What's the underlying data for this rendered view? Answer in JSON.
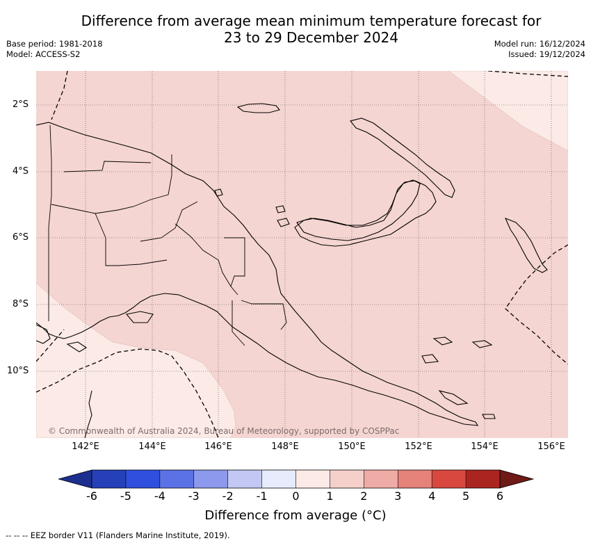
{
  "header": {
    "title_line1": "Difference from average mean minimum temperature forecast for",
    "title_line2": "23 to 29 December 2024",
    "base_period": "Base period: 1981-2018",
    "model": "Model: ACCESS-S2",
    "model_run": "Model run: 16/12/2024",
    "issued": "Issued: 19/12/2024"
  },
  "map": {
    "lat_labels": [
      "2°S",
      "4°S",
      "6°S",
      "8°S",
      "10°S"
    ],
    "lon_labels": [
      "142°E",
      "144°E",
      "146°E",
      "148°E",
      "150°E",
      "152°E",
      "154°E",
      "156°E"
    ],
    "copyright": "© Commonwealth of Australia 2024, Bureau of Meteorology, supported by COSPPac",
    "fill_colors": {
      "zero_to_one": "#fbeae6",
      "one_to_two": "#f5d5d1"
    }
  },
  "colorbar": {
    "tick_labels": [
      "-6",
      "-5",
      "-4",
      "-3",
      "-2",
      "-1",
      "0",
      "1",
      "2",
      "3",
      "4",
      "5",
      "6"
    ],
    "colors": [
      "#1c2e8e",
      "#2540b8",
      "#2f4fdc",
      "#5b72e6",
      "#8c99ec",
      "#c2c8f3",
      "#e7ebfb",
      "#fbeae6",
      "#f5d0cb",
      "#efaba5",
      "#e5827a",
      "#d8483e",
      "#aa2520",
      "#6e1a17"
    ],
    "label": "Difference from average (°C)"
  },
  "footer": {
    "legend_text": "--  --  -- EEZ border V11 (Flanders Marine Institute, 2019)."
  }
}
